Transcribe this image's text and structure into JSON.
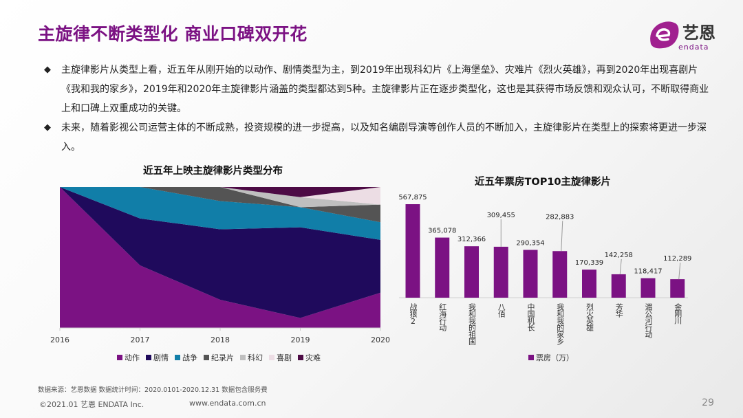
{
  "header": {
    "title": "主旋律不断类型化 商业口碑双开花",
    "logo_cn": "艺恩",
    "logo_en": "endata",
    "brand_color": "#7b1283"
  },
  "bullets": [
    "主旋律影片从类型上看，近五年从刚开始的以动作、剧情类型为主，到2019年出现科幻片《上海堡垒》、灾难片《烈火英雄》，再到2020年出现喜剧片《我和我的家乡》，2019年和2020年主旋律影片涵盖的类型都达到5种。主旋律影片正在逐步类型化，这也是其获得市场反馈和观众认可，不断取得商业上和口碑上双重成功的关键。",
    "未来，随着影视公司运营主体的不断成熟，投资规模的进一步提高，以及知名编剧导演等创作人员的不断加入，主旋律影片在类型上的探索将更进一步深入。"
  ],
  "bullet_icon": "diamond-icon",
  "chart_data": [
    {
      "type": "area",
      "stacked": "percent",
      "title": "近五年上映主旋律影片类型分布",
      "categories": [
        "2016",
        "2017",
        "2018",
        "2019",
        "2020"
      ],
      "series": [
        {
          "name": "动作",
          "color": "#7b1283",
          "values": [
            100,
            44.4,
            20,
            7.1,
            25
          ]
        },
        {
          "name": "剧情",
          "color": "#1f0a5c",
          "values": [
            0,
            33.3,
            50,
            64.3,
            37.5
          ]
        },
        {
          "name": "战争",
          "color": "#117ea8",
          "values": [
            0,
            22.3,
            20,
            14.3,
            12.5
          ]
        },
        {
          "name": "纪录片",
          "color": "#545454",
          "values": [
            0,
            0,
            10,
            0,
            12.5
          ]
        },
        {
          "name": "科幻",
          "color": "#bfbfbf",
          "values": [
            0,
            0,
            0,
            7.1,
            0
          ]
        },
        {
          "name": "喜剧",
          "color": "#ecdde4",
          "values": [
            0,
            0,
            0,
            0,
            12.5
          ]
        },
        {
          "name": "灾难",
          "color": "#4d0b45",
          "values": [
            0,
            0,
            0,
            7.2,
            0
          ]
        }
      ],
      "legend": "bottom",
      "grid": false
    },
    {
      "type": "bar",
      "title": "近五年票房TOP10主旋律影片",
      "categories": [
        "战狼2",
        "红海行动",
        "我和我的祖国",
        "八佰",
        "中国机长",
        "我和我的家乡",
        "烈火英雄",
        "芳华",
        "湄公河行动",
        "金刚川"
      ],
      "series": [
        {
          "name": "票房（万）",
          "color": "#7b1283",
          "values": [
            567875,
            365078,
            312366,
            309455,
            290354,
            282883,
            170339,
            142258,
            118417,
            112289
          ]
        }
      ],
      "value_labels": [
        "567,875",
        "365,078",
        "312,366",
        "309,455",
        "290,354",
        "282,883",
        "170,339",
        "142,258",
        "118,417",
        "112,289"
      ],
      "legend": "bottom",
      "grid": false
    }
  ],
  "footer": {
    "source": "数据来源：艺恩数据   数据统计时间：2020.0101-2020.12.31 数据包含服务费",
    "copyright": "©2021.01 艺恩 ENDATA Inc.",
    "url": "www.endata.com.cn",
    "page": "29"
  }
}
